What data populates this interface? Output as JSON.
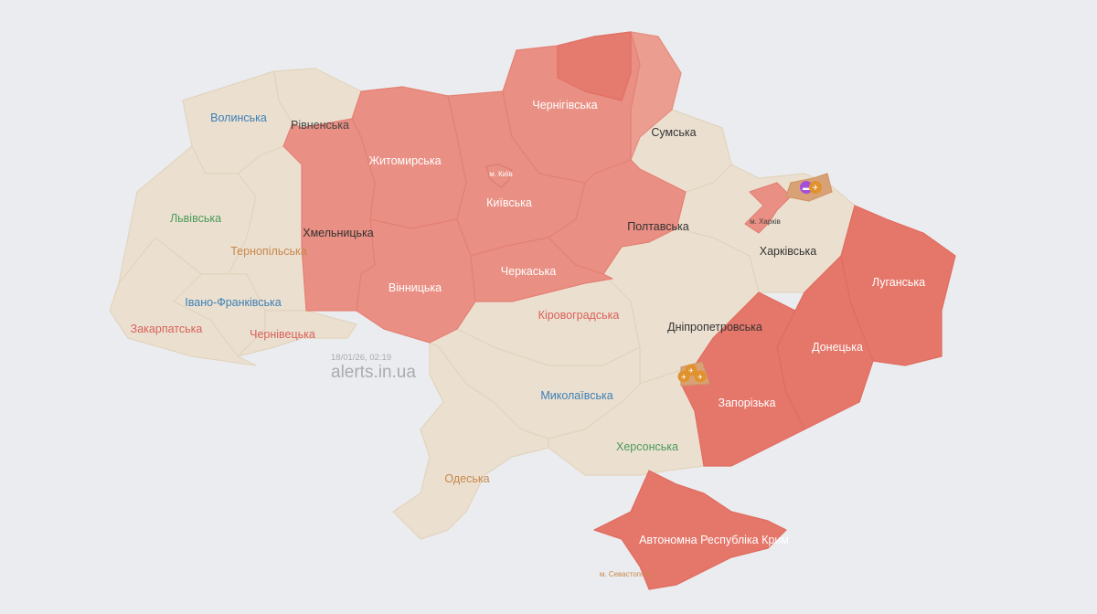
{
  "colors": {
    "background": "#ebecef",
    "no_alert": "#ebe0d0",
    "alert": "#e98f83",
    "alert_strong": "#e5766a",
    "partial_alert": "#eb9d90"
  },
  "regions": [
    {
      "name": "Волинська",
      "status": "none"
    },
    {
      "name": "Рівненська",
      "status": "none"
    },
    {
      "name": "Львівська",
      "status": "none"
    },
    {
      "name": "Тернопільська",
      "status": "none"
    },
    {
      "name": "Івано-Франківська",
      "status": "none"
    },
    {
      "name": "Закарпатська",
      "status": "none"
    },
    {
      "name": "Чернівецька",
      "status": "none"
    },
    {
      "name": "Хмельницька",
      "status": "alert"
    },
    {
      "name": "Житомирська",
      "status": "alert"
    },
    {
      "name": "Вінницька",
      "status": "alert"
    },
    {
      "name": "Київська",
      "status": "alert"
    },
    {
      "name": "Чернігівська",
      "status": "alert"
    },
    {
      "name": "Сумська",
      "status": "partial"
    },
    {
      "name": "Полтавська",
      "status": "alert"
    },
    {
      "name": "Черкаська",
      "status": "alert"
    },
    {
      "name": "Кіровоградська",
      "status": "none"
    },
    {
      "name": "Дніпропетровська",
      "status": "partial"
    },
    {
      "name": "Харківська",
      "status": "partial"
    },
    {
      "name": "Луганська",
      "status": "alert"
    },
    {
      "name": "Донецька",
      "status": "alert"
    },
    {
      "name": "Запорізька",
      "status": "alert"
    },
    {
      "name": "Миколаївська",
      "status": "none"
    },
    {
      "name": "Херсонська",
      "status": "none"
    },
    {
      "name": "Одеська",
      "status": "none"
    },
    {
      "name": "Автономна Республіка Крим",
      "status": "alert"
    }
  ],
  "cities": {
    "kyiv": "м. Київ",
    "kharkiv": "м. Харків",
    "sevastopol": "м. Севастополь"
  },
  "threat_icons": [
    "tank-icon",
    "artillery-icon",
    "artillery-icon",
    "artillery-icon",
    "artillery-icon"
  ],
  "watermark": {
    "timestamp": "18/01/26, 02:19",
    "site": "alerts.in.ua"
  }
}
